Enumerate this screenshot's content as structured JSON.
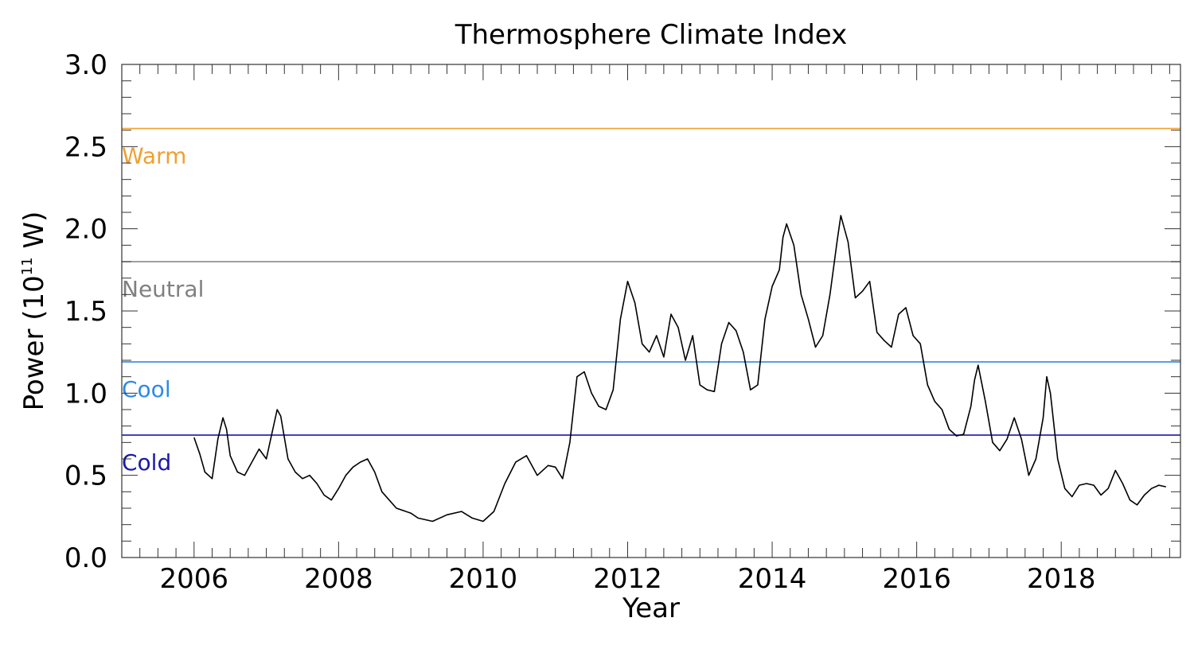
{
  "chart_data": {
    "type": "line",
    "title": "Thermosphere Climate Index",
    "xlabel": "Year",
    "ylabel": "Power (10",
    "ylabel_superscript": "11",
    "ylabel_suffix": " W)",
    "xlim": [
      2005.0,
      2019.65
    ],
    "ylim": [
      0.0,
      3.0
    ],
    "x_ticks": [
      2006,
      2008,
      2010,
      2012,
      2014,
      2016,
      2018
    ],
    "y_ticks": [
      "0.0",
      "0.5",
      "1.0",
      "1.5",
      "2.0",
      "2.5",
      "3.0"
    ],
    "grid": false,
    "reference_levels": [
      {
        "name": "Warm",
        "value": 2.61,
        "color": "#f0a030"
      },
      {
        "name": "Neutral",
        "value": 1.8,
        "color": "#808080"
      },
      {
        "name": "Cool",
        "value": 1.19,
        "color": "#2e8ae6"
      },
      {
        "name": "Cold",
        "value": 0.745,
        "color": "#1a1aa6"
      }
    ],
    "series": [
      {
        "x": [
          2006.0,
          2006.08,
          2006.15,
          2006.25,
          2006.33,
          2006.4,
          2006.45,
          2006.5,
          2006.6,
          2006.7,
          2006.8,
          2006.9,
          2007.0,
          2007.05,
          2007.15,
          2007.2,
          2007.3,
          2007.4,
          2007.5,
          2007.6,
          2007.7,
          2007.8,
          2007.9,
          2008.0,
          2008.1,
          2008.2,
          2008.3,
          2008.4,
          2008.5,
          2008.6,
          2008.8,
          2009.0,
          2009.1,
          2009.3,
          2009.5,
          2009.7,
          2009.85,
          2010.0,
          2010.15,
          2010.3,
          2010.45,
          2010.6,
          2010.75,
          2010.9,
          2011.0,
          2011.1,
          2011.2,
          2011.3,
          2011.4,
          2011.5,
          2011.6,
          2011.7,
          2011.8,
          2011.9,
          2012.0,
          2012.1,
          2012.2,
          2012.3,
          2012.4,
          2012.5,
          2012.6,
          2012.7,
          2012.8,
          2012.9,
          2013.0,
          2013.1,
          2013.2,
          2013.3,
          2013.4,
          2013.5,
          2013.6,
          2013.7,
          2013.8,
          2013.9,
          2014.0,
          2014.1,
          2014.15,
          2014.2,
          2014.3,
          2014.4,
          2014.5,
          2014.6,
          2014.7,
          2014.8,
          2014.9,
          2014.95,
          2015.05,
          2015.15,
          2015.25,
          2015.35,
          2015.45,
          2015.55,
          2015.65,
          2015.75,
          2015.85,
          2015.95,
          2016.05,
          2016.15,
          2016.25,
          2016.35,
          2016.45,
          2016.55,
          2016.65,
          2016.75,
          2016.8,
          2016.85,
          2016.95,
          2017.05,
          2017.15,
          2017.25,
          2017.35,
          2017.45,
          2017.55,
          2017.65,
          2017.75,
          2017.8,
          2017.85,
          2017.95,
          2018.05,
          2018.15,
          2018.25,
          2018.35,
          2018.45,
          2018.55,
          2018.65,
          2018.75,
          2018.85,
          2018.95,
          2019.05,
          2019.15,
          2019.25,
          2019.35,
          2019.45
        ],
        "y": [
          0.73,
          0.63,
          0.52,
          0.48,
          0.72,
          0.85,
          0.78,
          0.62,
          0.52,
          0.5,
          0.58,
          0.66,
          0.6,
          0.7,
          0.9,
          0.86,
          0.6,
          0.52,
          0.48,
          0.5,
          0.45,
          0.38,
          0.35,
          0.42,
          0.5,
          0.55,
          0.58,
          0.6,
          0.52,
          0.4,
          0.3,
          0.27,
          0.24,
          0.22,
          0.26,
          0.28,
          0.24,
          0.22,
          0.28,
          0.45,
          0.58,
          0.62,
          0.5,
          0.56,
          0.55,
          0.48,
          0.7,
          1.1,
          1.13,
          1.0,
          0.92,
          0.9,
          1.02,
          1.45,
          1.68,
          1.55,
          1.3,
          1.25,
          1.35,
          1.22,
          1.48,
          1.4,
          1.2,
          1.35,
          1.05,
          1.02,
          1.01,
          1.3,
          1.43,
          1.38,
          1.25,
          1.02,
          1.05,
          1.45,
          1.65,
          1.75,
          1.95,
          2.03,
          1.9,
          1.6,
          1.45,
          1.28,
          1.35,
          1.6,
          1.93,
          2.08,
          1.92,
          1.58,
          1.62,
          1.68,
          1.37,
          1.32,
          1.28,
          1.48,
          1.52,
          1.35,
          1.3,
          1.05,
          0.95,
          0.9,
          0.78,
          0.74,
          0.75,
          0.92,
          1.08,
          1.17,
          0.95,
          0.7,
          0.65,
          0.72,
          0.85,
          0.72,
          0.5,
          0.6,
          0.85,
          1.1,
          1.0,
          0.6,
          0.42,
          0.37,
          0.44,
          0.45,
          0.44,
          0.38,
          0.42,
          0.53,
          0.45,
          0.35,
          0.32,
          0.38,
          0.42,
          0.44,
          0.43
        ]
      }
    ]
  }
}
